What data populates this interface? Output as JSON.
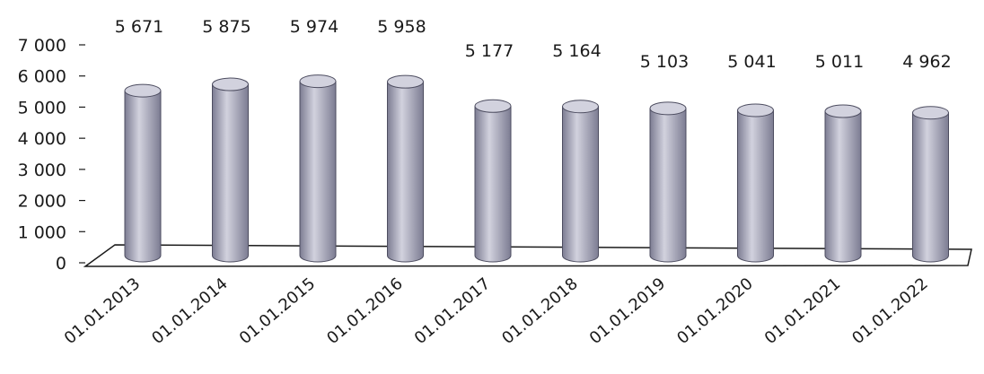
{
  "chart_data": {
    "type": "bar",
    "bar_style": "3d-cylinder",
    "categories": [
      "01.01.2013",
      "01.01.2014",
      "01.01.2015",
      "01.01.2016",
      "01.01.2017",
      "01.01.2018",
      "01.01.2019",
      "01.01.2020",
      "01.01.2021",
      "01.01.2022"
    ],
    "values": [
      5671,
      5875,
      5974,
      5958,
      5177,
      5164,
      5103,
      5041,
      5011,
      4962
    ],
    "data_labels": [
      "5 671",
      "5 875",
      "5 974",
      "5 958",
      "5 177",
      "5 164",
      "5 103",
      "5 041",
      "5 011",
      "4 962"
    ],
    "y_ticks": [
      "0",
      "1 000",
      "2 000",
      "3 000",
      "4 000",
      "5 000",
      "6 000",
      "7 000"
    ],
    "ylim": [
      0,
      7000
    ],
    "title": "",
    "xlabel": "",
    "ylabel": "",
    "grid": false,
    "legend": "none",
    "colors": {
      "bar": "#a6a6b8",
      "bar_highlight": "#d2d2de",
      "bar_shadow": "#7c7c92",
      "axis": "#1a1a1a"
    }
  }
}
